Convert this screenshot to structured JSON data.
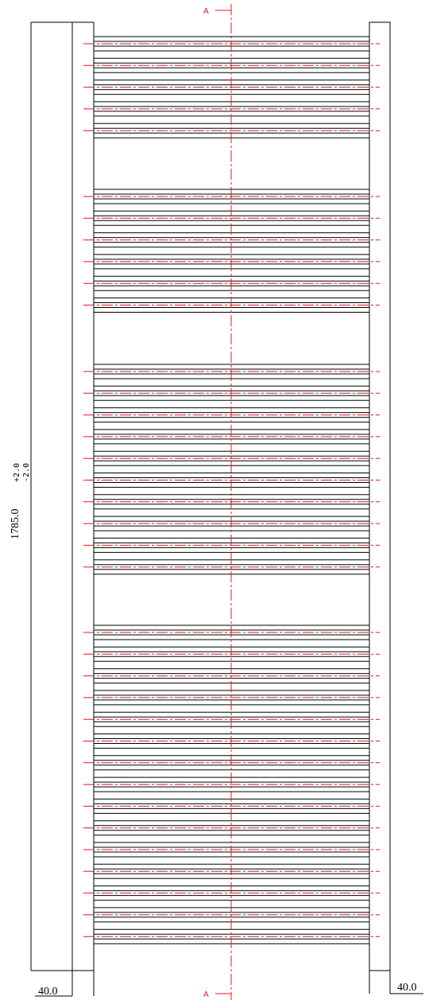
{
  "drawing": {
    "section_label": "A",
    "height_dimension": {
      "value": "1785.0",
      "tolerance_upper": "+2.0",
      "tolerance_lower": "-2.0"
    },
    "left_rail_width": "40.0",
    "right_rail_width": "40.0",
    "colors": {
      "outline": "#000000",
      "centerline": "#e8141c"
    },
    "bar_groups": [
      {
        "bars": 5
      },
      {
        "bars": 6
      },
      {
        "bars": 10
      },
      {
        "bars": 15
      }
    ]
  }
}
